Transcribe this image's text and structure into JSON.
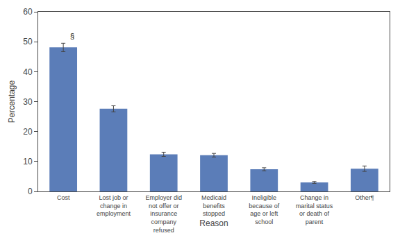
{
  "chart_data": {
    "type": "bar",
    "categories": [
      "Cost",
      "Lost job or\nchange in\nemployment",
      "Employer did\nnot offer or\ninsurance\ncompany\nrefused",
      "Medicaid\nbenefits\nstopped",
      "Ineligible\nbecause of\nage or left\nschool",
      "Change in\nmarital status\nor death of\nparent",
      "Other¶"
    ],
    "values": [
      48.1,
      27.6,
      12.4,
      12.1,
      7.4,
      3.0,
      7.6
    ],
    "errors": [
      1.4,
      1.0,
      0.7,
      0.6,
      0.5,
      0.3,
      0.9
    ],
    "color": "#5B7DB8",
    "xlabel": "Reason",
    "ylabel": "Percentage",
    "ylim": [
      0,
      60
    ],
    "yticks": [
      0,
      10,
      20,
      30,
      40,
      50,
      60
    ],
    "grid": false,
    "annotations": [
      {
        "text": "§",
        "category": "Cost"
      }
    ]
  }
}
